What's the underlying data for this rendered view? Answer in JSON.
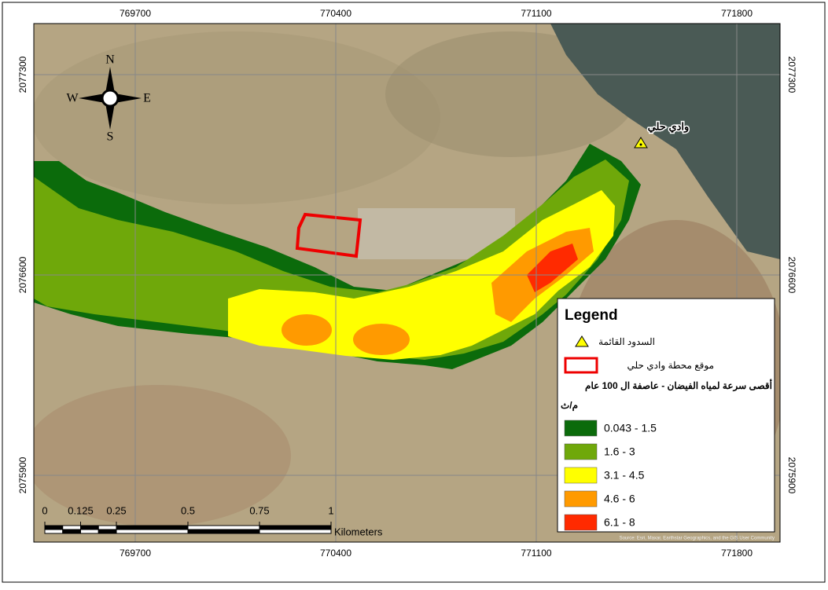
{
  "map": {
    "x_ticks": [
      769700,
      770400,
      771100,
      771800
    ],
    "y_ticks": [
      2077300,
      2076600,
      2075900
    ],
    "north_arrow": {
      "n": "N",
      "s": "S",
      "e": "E",
      "w": "W"
    },
    "place_label": "وادي حلي",
    "attribution": "Source: Esri, Maxar, Earthstar Geographics, and the GIS User Community",
    "scale_bar": {
      "ticks": [
        0,
        0.125,
        0.25,
        0.5,
        0.75,
        1
      ],
      "unit": "Kilometers"
    },
    "legend": {
      "title": "Legend",
      "dams": "السدود القائمة",
      "station": "موقع محطة وادي حلي",
      "heading": "أقصى سرعة لمياه الفيضان - عاصفة ال 100 عام",
      "unit": "م/ث",
      "classes": [
        {
          "label": "0.043 - 1.5",
          "color": "#0b6b0b"
        },
        {
          "label": "1.6 - 3",
          "color": "#6fa80a"
        },
        {
          "label": "3.1 - 4.5",
          "color": "#ffff00"
        },
        {
          "label": "4.6 - 6",
          "color": "#ff9a00"
        },
        {
          "label": "6.1 - 8",
          "color": "#ff2a00"
        }
      ]
    }
  }
}
